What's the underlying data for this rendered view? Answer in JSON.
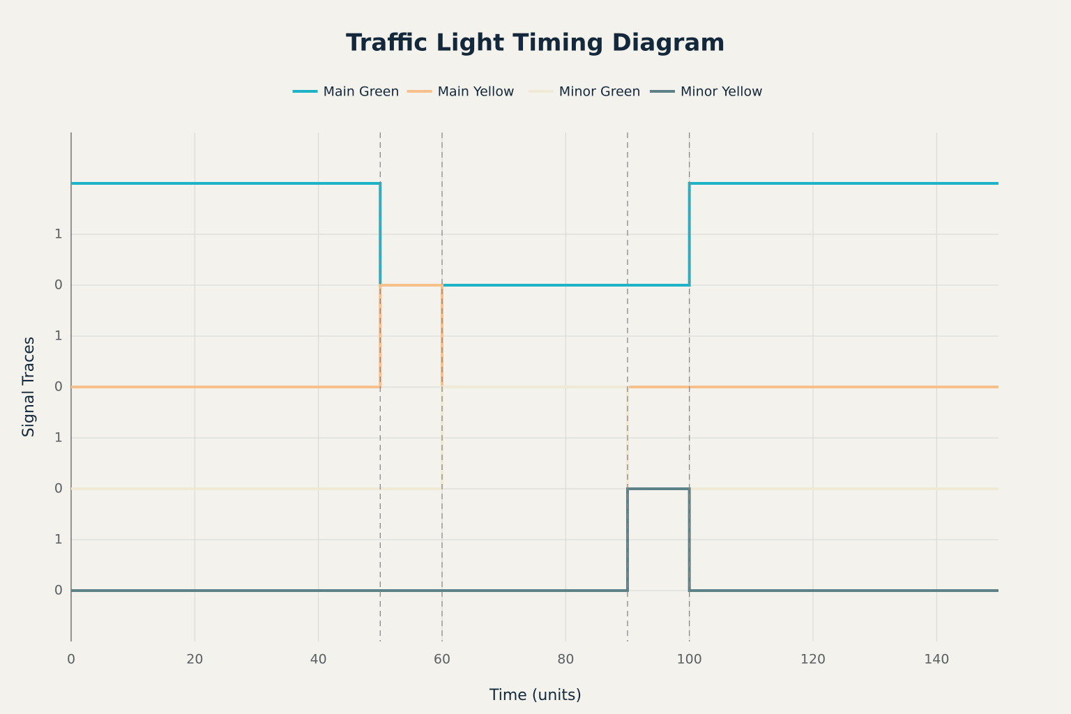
{
  "chart_data": {
    "type": "step-line",
    "title": "Traffic Light Timing Diagram",
    "x_label": "Time (units)",
    "y_label": "Signal Traces",
    "shape": "hv",
    "series": [
      {
        "name": "Main Green",
        "color": "#1fb3c7",
        "x": [
          0,
          50,
          100,
          150
        ],
        "values": [
          8,
          6,
          8,
          8
        ]
      },
      {
        "name": "Main Yellow",
        "color": "#f8c08a",
        "x": [
          0,
          50,
          60,
          150
        ],
        "values": [
          4,
          6,
          4,
          4
        ]
      },
      {
        "name": "Minor Green",
        "color": "#efe9d6",
        "x": [
          0,
          60,
          90,
          150
        ],
        "values": [
          2,
          4,
          2,
          2
        ]
      },
      {
        "name": "Minor Yellow",
        "color": "#5e8087",
        "x": [
          0,
          90,
          100,
          150
        ],
        "values": [
          0,
          2,
          0,
          0
        ]
      }
    ],
    "vlines": [
      50,
      60,
      90,
      100
    ],
    "xlim": [
      0,
      150
    ],
    "xticks": [
      0,
      20,
      40,
      60,
      80,
      100,
      120,
      140
    ],
    "ylim": [
      -1,
      9
    ],
    "yticks": [
      0,
      1,
      {
        "value": 2,
        "label": "0"
      },
      {
        "value": 3,
        "label": "1"
      },
      {
        "value": 4,
        "label": "0"
      },
      {
        "value": 5,
        "label": "1"
      },
      {
        "value": 6,
        "label": "0"
      },
      {
        "value": 7,
        "label": "1"
      }
    ],
    "grid": true,
    "legend": "top"
  }
}
